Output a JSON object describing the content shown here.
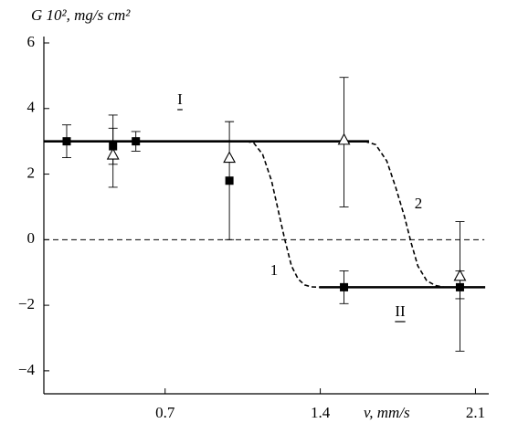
{
  "chart_data": {
    "type": "scatter",
    "y_label": "G 10², mg/s cm²",
    "x_label": "v, mm/s",
    "xlim": [
      0.153,
      2.16
    ],
    "ylim": [
      -4.7,
      6
    ],
    "xticks": [
      0.7,
      1.4,
      2.1
    ],
    "yticks": [
      {
        "value": -4,
        "label": "−4"
      },
      {
        "value": -2,
        "label": "−2"
      },
      0,
      2,
      4,
      6
    ],
    "series": [
      {
        "marker": "square",
        "color": "#000000",
        "x": [
          0.256,
          0.465,
          0.568,
          0.99,
          1.507,
          2.03
        ],
        "values": [
          3.0,
          2.85,
          3.0,
          1.8,
          -1.45,
          -1.45
        ],
        "lower": [
          2.5,
          2.3,
          2.7,
          null,
          -1.95,
          -3.4
        ],
        "upper": [
          3.5,
          3.4,
          3.3,
          null,
          -0.95,
          -0.95
        ]
      },
      {
        "marker": "triangle",
        "color": "#000000",
        "x": [
          0.465,
          0.99,
          1.507,
          2.03
        ],
        "values": [
          2.6,
          2.5,
          3.05,
          -1.1
        ],
        "lower": [
          1.6,
          0.0,
          1.0,
          -1.8
        ],
        "upper": [
          3.8,
          3.6,
          4.95,
          0.55
        ]
      }
    ],
    "lines": [
      {
        "style": "solid",
        "x": [
          0.153,
          1.62
        ],
        "y": [
          3.0,
          3.0
        ]
      },
      {
        "style": "solid",
        "x": [
          1.395,
          2.144
        ],
        "y": [
          -1.45,
          -1.45
        ]
      },
      {
        "style": "dashed",
        "x": [
          0.153,
          2.14
        ],
        "y": [
          0,
          0
        ]
      },
      {
        "style": "curve",
        "x": [
          1.066,
          1.1,
          1.14,
          1.18,
          1.21,
          1.24,
          1.27,
          1.3,
          1.33,
          1.36,
          1.395
        ],
        "y": [
          3.0,
          2.95,
          2.6,
          1.8,
          0.9,
          0.0,
          -0.8,
          -1.2,
          -1.38,
          -1.44,
          -1.45
        ]
      },
      {
        "style": "curve",
        "x": [
          1.6,
          1.65,
          1.7,
          1.74,
          1.78,
          1.81,
          1.84,
          1.88,
          1.92,
          1.96,
          2.01
        ],
        "y": [
          3.0,
          2.9,
          2.4,
          1.6,
          0.7,
          -0.1,
          -0.8,
          -1.25,
          -1.4,
          -1.45,
          -1.45
        ]
      }
    ],
    "annotations": [
      "I",
      "II",
      "1",
      "2"
    ]
  }
}
